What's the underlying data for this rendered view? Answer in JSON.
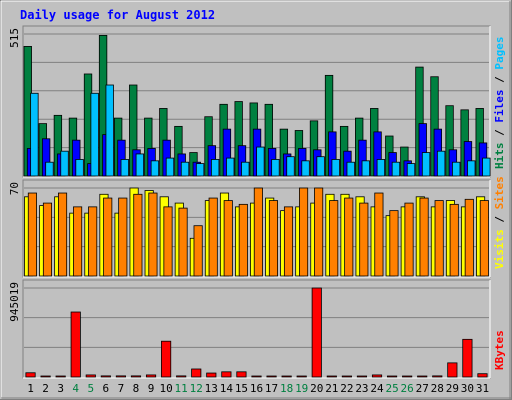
{
  "chart_data": {
    "type": "bar",
    "title": "Daily usage for August 2012",
    "x": [
      "1",
      "2",
      "3",
      "4",
      "5",
      "6",
      "7",
      "8",
      "9",
      "10",
      "11",
      "12",
      "13",
      "14",
      "15",
      "16",
      "17",
      "18",
      "19",
      "20",
      "21",
      "22",
      "23",
      "24",
      "25",
      "26",
      "27",
      "28",
      "29",
      "30",
      "31"
    ],
    "weekend_days": [
      "4",
      "5",
      "11",
      "12",
      "18",
      "19",
      "25",
      "26"
    ],
    "colors": {
      "background": "#c0c0c0",
      "hits": "#008040",
      "files": "#0000ff",
      "pages": "#00c0ff",
      "visits": "#ffff00",
      "sites": "#ff8000",
      "kbytes": "#ff0000",
      "title": "#0000ff",
      "weekday_label": "#000000",
      "weekend_label": "#008040"
    },
    "panels": [
      {
        "id": "hits-files-pages",
        "ymax_label": "515",
        "ymax": 515,
        "axis_labels": [
          "Pages",
          "Files",
          "Hits"
        ],
        "series": [
          {
            "name": "Hits",
            "color": "#008040",
            "values": [
              470,
              190,
              220,
              210,
              370,
              510,
              210,
              330,
              210,
              245,
              180,
              85,
              215,
              260,
              270,
              265,
              260,
              170,
              165,
              200,
              365,
              180,
              210,
              245,
              145,
              105,
              395,
              360,
              255,
              240,
              245
            ]
          },
          {
            "name": "Files",
            "color": "#0000ff",
            "values": [
              100,
              135,
              80,
              130,
              45,
              150,
              130,
              95,
              100,
              130,
              80,
              50,
              110,
              170,
              110,
              170,
              100,
              80,
              100,
              95,
              160,
              90,
              130,
              160,
              85,
              55,
              190,
              170,
              95,
              125,
              120
            ]
          },
          {
            "name": "Pages",
            "color": "#00c0ff",
            "values": [
              300,
              50,
              90,
              60,
              300,
              330,
              60,
              80,
              55,
              65,
              50,
              45,
              60,
              65,
              50,
              105,
              60,
              70,
              55,
              70,
              60,
              50,
              55,
              60,
              50,
              45,
              85,
              90,
              50,
              55,
              65
            ]
          }
        ]
      },
      {
        "id": "visits-sites",
        "ymax_label": "70",
        "ymax": 70,
        "axis_labels": [
          "Sites",
          "Visits"
        ],
        "series": [
          {
            "name": "Visits",
            "color": "#ffff00",
            "values": [
              63,
              56,
              63,
              50,
              50,
              65,
              50,
              70,
              68,
              63,
              58,
              30,
              60,
              66,
              55,
              58,
              62,
              52,
              55,
              58,
              65,
              65,
              63,
              55,
              48,
              55,
              63,
              55,
              60,
              55,
              63
            ]
          },
          {
            "name": "Sites",
            "color": "#ff8000",
            "values": [
              66,
              58,
              66,
              55,
              55,
              62,
              62,
              65,
              66,
              55,
              54,
              40,
              62,
              60,
              57,
              70,
              60,
              55,
              70,
              70,
              60,
              62,
              58,
              66,
              52,
              58,
              62,
              60,
              57,
              61,
              60
            ]
          }
        ]
      },
      {
        "id": "kbytes",
        "ymax_label": "945019",
        "ymax": 945019,
        "axis_labels": [
          "KBytes"
        ],
        "series": [
          {
            "name": "KBytes",
            "color": "#ff0000",
            "values": [
              45000,
              8000,
              8000,
              690000,
              22000,
              12000,
              12000,
              12000,
              22000,
              380000,
              12000,
              85000,
              42000,
              55000,
              55000,
              8000,
              8000,
              8000,
              8000,
              945019,
              8000,
              8000,
              8000,
              22000,
              8000,
              8000,
              8000,
              12000,
              150000,
              400000,
              35000
            ]
          }
        ]
      }
    ]
  }
}
